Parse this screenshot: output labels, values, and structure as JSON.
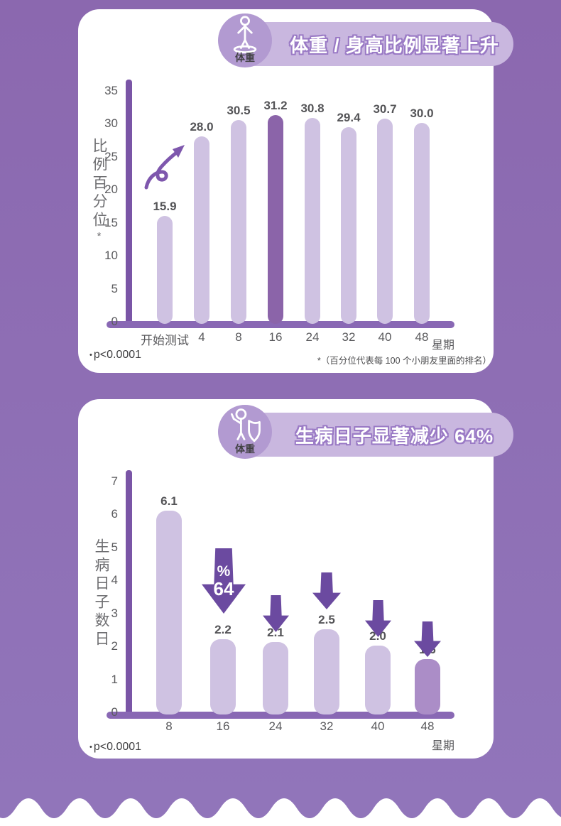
{
  "page": {
    "background_top": "#8b68af",
    "background_bottom": "#9175ba",
    "card_color": "#ffffff"
  },
  "chart_data": [
    {
      "type": "bar",
      "badge": "体重",
      "title": "体重 / 身高比例显著上升",
      "ylabel": "比例百分位",
      "ylabel_mark": "*",
      "xlabel": "星期",
      "ylim": [
        0,
        35
      ],
      "yticks": [
        "0",
        "5",
        "10",
        "15",
        "20",
        "25",
        "30",
        "35"
      ],
      "categories": [
        "开始测试",
        "4",
        "8",
        "16",
        "24",
        "32",
        "40",
        "48"
      ],
      "values": [
        15.9,
        28.0,
        30.5,
        31.2,
        30.8,
        29.4,
        30.7,
        30.0
      ],
      "value_labels": [
        "15.9",
        "28.0",
        "30.5",
        "31.2",
        "30.8",
        "29.4",
        "30.7",
        "30.0"
      ],
      "highlight_index": 3,
      "pvalue_bullet": "•",
      "pvalue": "p<0.0001",
      "footnote": "*（百分位代表每 100 个小朋友里面的排名）",
      "legend": null,
      "grid": false,
      "colors": {
        "bar": "#cfc2e2",
        "bar_highlight": "#8b64a9",
        "axis": "#7a55a6"
      }
    },
    {
      "type": "bar",
      "badge": "体重",
      "title": "生病日子显著减少 64%",
      "ylabel": "生病日子数日",
      "xlabel": "星期",
      "ylim": [
        0,
        7
      ],
      "yticks": [
        "0",
        "1",
        "2",
        "3",
        "4",
        "5",
        "6",
        "7"
      ],
      "categories": [
        "8",
        "16",
        "24",
        "32",
        "40",
        "48"
      ],
      "values": [
        6.1,
        2.2,
        2.1,
        2.5,
        2.0,
        1.6
      ],
      "value_labels": [
        "6.1",
        "2.2",
        "2.1",
        "2.5",
        "2.0",
        "1.6"
      ],
      "highlight_index": 5,
      "pvalue_bullet": "•",
      "pvalue": "p<0.0001",
      "big_arrow": {
        "top_text": "%",
        "bottom_text": "64",
        "over_category": "16"
      },
      "arrow_over_categories": [
        "24",
        "32",
        "40",
        "48"
      ],
      "legend": null,
      "grid": false,
      "colors": {
        "bar": "#cfc2e2",
        "bar_highlight": "#ab8dc7",
        "arrow": "#6b4aa0",
        "axis": "#7a55a6"
      }
    }
  ]
}
